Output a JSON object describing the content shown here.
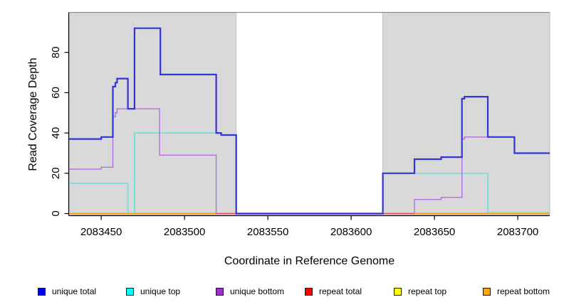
{
  "figure_title": "",
  "axes": {
    "xlabel": "Coordinate in Reference Genome",
    "ylabel": "Read Coverage Depth"
  },
  "chart_data": {
    "type": "line",
    "subtype": "step-coverage-plot",
    "title": "",
    "xlabel": "Coordinate in Reference Genome",
    "ylabel": "Read Coverage Depth",
    "x_domain": [
      2083430.7,
      2083719.2
    ],
    "y_domain": [
      0,
      100
    ],
    "x_ticks": [
      2083450,
      2083500,
      2083550,
      2083600,
      2083650,
      2083700
    ],
    "y_ticks": [
      0,
      20,
      40,
      60,
      80
    ],
    "grid": false,
    "legend_position": "bottom",
    "background_color": "#ffffff",
    "shaded_regions": [
      {
        "name": "left-gray-region",
        "from": 2083430.7,
        "to": 2083531,
        "fill": "#d9d9d9",
        "stroke": "#b5b5b5"
      },
      {
        "name": "right-gray-region",
        "from": 2083619,
        "to": 2083719.2,
        "fill": "#d9d9d9",
        "stroke": "#b5b5b5"
      }
    ],
    "white_gap": {
      "from": 2083531,
      "to": 2083619,
      "top_border_color": "#8c8c8c"
    },
    "legend": [
      {
        "label": "unique total",
        "swatch": "#0000ee"
      },
      {
        "label": "unique top",
        "swatch": "#00ffff"
      },
      {
        "label": "unique bottom",
        "swatch": "#9932cc"
      },
      {
        "label": "repeat total",
        "swatch": "#ff0000"
      },
      {
        "label": "repeat top",
        "swatch": "#ffff00"
      },
      {
        "label": "repeat bottom",
        "swatch": "#ffa500"
      }
    ],
    "series": [
      {
        "name": "unique top",
        "color": "#63e2de",
        "width": 1.6,
        "layer": 1,
        "end": 2083682,
        "steps": [
          [
            2083430.7,
            15
          ],
          [
            2083466,
            0
          ],
          [
            2083470,
            40
          ],
          [
            2083522,
            39
          ],
          [
            2083531,
            0
          ],
          [
            2083619,
            20
          ],
          [
            2083682,
            0
          ]
        ]
      },
      {
        "name": "unique bottom",
        "color": "#b170e2",
        "width": 1.4,
        "layer": 2,
        "end": 2083719.2,
        "steps": [
          [
            2083430.7,
            22
          ],
          [
            2083450,
            23
          ],
          [
            2083457,
            48
          ],
          [
            2083458.5,
            50
          ],
          [
            2083459.5,
            52
          ],
          [
            2083485,
            29
          ],
          [
            2083519,
            0
          ],
          [
            2083638,
            7
          ],
          [
            2083654,
            8
          ],
          [
            2083666.5,
            37
          ],
          [
            2083668,
            38
          ],
          [
            2083698,
            30
          ]
        ]
      },
      {
        "name": "unique total",
        "color": "#3434d6",
        "width": 2.2,
        "layer": 9,
        "end": 2083719.2,
        "steps": [
          [
            2083430.7,
            37
          ],
          [
            2083450,
            38
          ],
          [
            2083457,
            63
          ],
          [
            2083458.5,
            65
          ],
          [
            2083459.5,
            67
          ],
          [
            2083466,
            52
          ],
          [
            2083470,
            92
          ],
          [
            2083485.5,
            69
          ],
          [
            2083519,
            40
          ],
          [
            2083522,
            39
          ],
          [
            2083531,
            0
          ],
          [
            2083619,
            20
          ],
          [
            2083638,
            27
          ],
          [
            2083654,
            28
          ],
          [
            2083666.5,
            57
          ],
          [
            2083668,
            58
          ],
          [
            2083682,
            38
          ],
          [
            2083698,
            30
          ]
        ]
      }
    ],
    "baseline_segments": [
      {
        "name": "repeat bottom",
        "color": "#ff9d1c",
        "width": 2,
        "dy": 0,
        "from": 2083430.7,
        "to": 2083519
      },
      {
        "name": "repeat bottom",
        "color": "#ff9d1c",
        "width": 2,
        "dy": 0,
        "from": 2083638,
        "to": 2083719.2
      },
      {
        "name": "repeat total",
        "color": "#e25064",
        "width": 1.6,
        "dy": 0,
        "from": 2083519,
        "to": 2083531
      },
      {
        "name": "repeat total",
        "color": "#e25064",
        "width": 1.6,
        "dy": 0,
        "from": 2083619,
        "to": 2083638
      },
      {
        "name": "overlap green",
        "color": "#93d79d",
        "width": 1.6,
        "dy": -1.2,
        "from": 2083682,
        "to": 2083719.2
      },
      {
        "name": "unique bottom fringe",
        "color": "#c9a1ec",
        "width": 1.3,
        "dy": 1.4,
        "from": 2083531,
        "to": 2083619
      }
    ]
  }
}
